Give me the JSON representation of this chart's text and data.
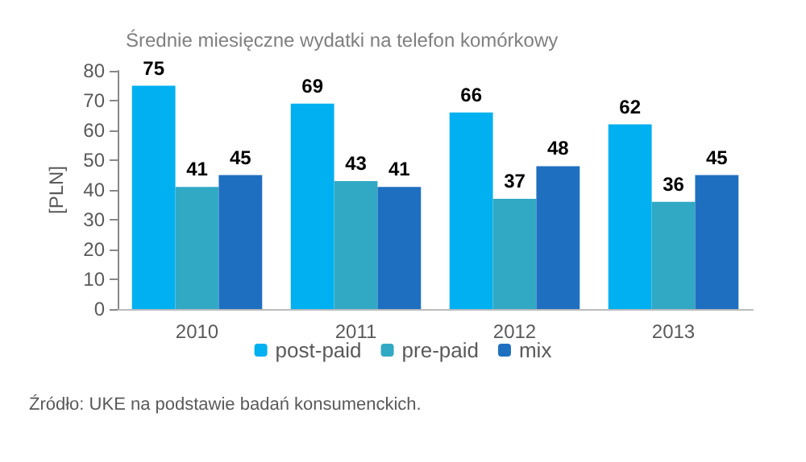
{
  "chart_data": {
    "type": "bar",
    "title": "Średnie miesięczne wydatki na telefon komórkowy",
    "ylabel": "[PLN]",
    "categories": [
      "2010",
      "2011",
      "2012",
      "2013"
    ],
    "series": [
      {
        "name": "post-paid",
        "color": "#00b0f0",
        "values": [
          75,
          69,
          66,
          62
        ]
      },
      {
        "name": "pre-paid",
        "color": "#31a9c4",
        "values": [
          41,
          43,
          37,
          36
        ]
      },
      {
        "name": "mix",
        "color": "#1f6fc1",
        "values": [
          45,
          41,
          48,
          45
        ]
      }
    ],
    "ylim": [
      0,
      80
    ],
    "yticks": [
      0,
      10,
      20,
      30,
      40,
      50,
      60,
      70,
      80
    ],
    "grid": false,
    "legend": "bottom",
    "data_labels": true,
    "annotations": [
      "Źródło: UKE na podstawie badań konsumenckich."
    ]
  }
}
